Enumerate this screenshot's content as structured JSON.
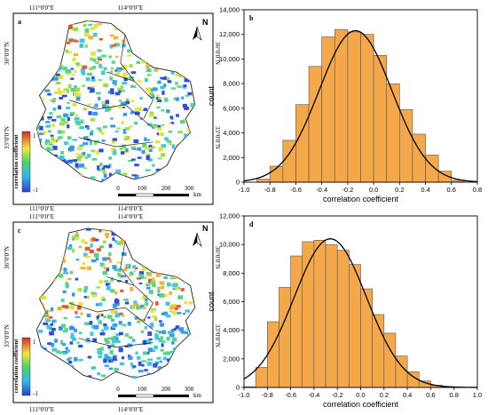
{
  "panels": {
    "a": {
      "label": "a",
      "top_lon_labels": [
        "111°0'0\"E",
        "114°0'0\"E"
      ],
      "bottom_lon_labels": [
        "111°0'0\"E",
        "114°0'0\"E"
      ],
      "left_lat_labels": [
        "36°0'0\"N",
        "33°0'0\"N"
      ],
      "right_lat_labels": [
        "36°0'0\"N",
        "33°0'0\"N"
      ],
      "legend_title": "correlation coefficient",
      "legend_max": "1",
      "legend_min": "-1",
      "scale_ticks": [
        "0",
        "100",
        "200",
        "300"
      ],
      "scale_unit": "km",
      "north": "N"
    },
    "c": {
      "label": "c",
      "top_lon_labels": [
        "111°0'0\"E",
        "114°0'0\"E"
      ],
      "bottom_lon_labels": [
        "111°0'0\"E",
        "114°0'0\"E"
      ],
      "left_lat_labels": [
        "36°0'0\"N",
        "33°0'0\"N"
      ],
      "right_lat_labels": [
        "36°0'0\"N",
        "33°0'0\"N"
      ],
      "legend_title": "correlation coefficient",
      "legend_max": "1",
      "legend_min": "-1",
      "scale_ticks": [
        "0",
        "100",
        "200",
        "300"
      ],
      "scale_unit": "km",
      "north": "N"
    }
  },
  "colors": {
    "bar_fill": "#f5a84a",
    "bar_stroke": "#555555",
    "curve": "#000000"
  },
  "chart_data": [
    {
      "panel": "b",
      "type": "bar",
      "xlabel": "correlation coefficient",
      "ylabel": "count",
      "xlim": [
        -1.0,
        0.8
      ],
      "ylim": [
        0,
        14000
      ],
      "xticks": [
        -1.0,
        -0.8,
        -0.6,
        -0.4,
        -0.2,
        0.0,
        0.2,
        0.4,
        0.6,
        0.8
      ],
      "yticks": [
        0,
        2000,
        4000,
        6000,
        8000,
        10000,
        12000,
        14000
      ],
      "bin_edges": [
        -0.9,
        -0.8,
        -0.7,
        -0.6,
        -0.5,
        -0.4,
        -0.3,
        -0.2,
        -0.1,
        0.0,
        0.1,
        0.2,
        0.3,
        0.4,
        0.5,
        0.6,
        0.7
      ],
      "values": [
        250,
        1300,
        3400,
        6300,
        9400,
        11800,
        12400,
        12200,
        12000,
        10300,
        8000,
        5900,
        3900,
        2200,
        900,
        150
      ],
      "fit_curve": {
        "type": "normal",
        "mean": -0.14,
        "sd": 0.28,
        "peak": 12300
      }
    },
    {
      "panel": "d",
      "type": "bar",
      "xlabel": "correlation coefficient",
      "ylabel": "count",
      "xlim": [
        -1.0,
        1.0
      ],
      "ylim": [
        0,
        12000
      ],
      "xticks": [
        -1.0,
        -0.8,
        -0.6,
        -0.4,
        -0.2,
        0.0,
        0.2,
        0.4,
        0.6,
        0.8,
        1.0
      ],
      "yticks": [
        0,
        2000,
        4000,
        6000,
        8000,
        10000,
        12000
      ],
      "bin_edges": [
        -1.0,
        -0.9,
        -0.8,
        -0.7,
        -0.6,
        -0.5,
        -0.4,
        -0.3,
        -0.2,
        -0.1,
        0.0,
        0.1,
        0.2,
        0.3,
        0.4,
        0.5,
        0.6,
        0.7,
        0.8,
        0.9
      ],
      "values": [
        50,
        1400,
        4600,
        7000,
        9200,
        10200,
        10300,
        10000,
        9600,
        8600,
        6900,
        5100,
        3800,
        2200,
        1100,
        450,
        150,
        60,
        20
      ],
      "fit_curve": {
        "type": "normal",
        "mean": -0.26,
        "sd": 0.31,
        "peak": 10400
      }
    }
  ]
}
